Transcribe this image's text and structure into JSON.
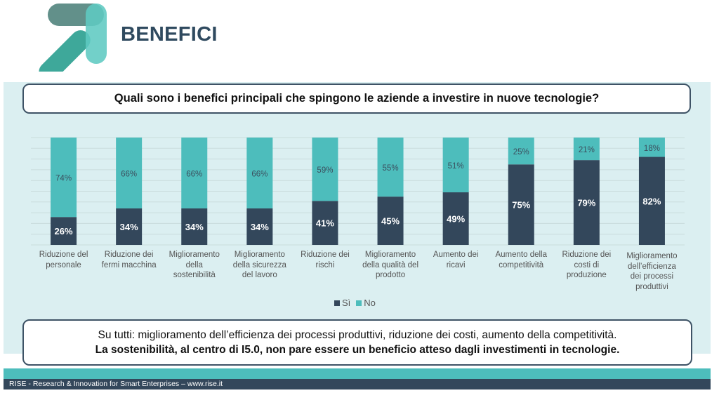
{
  "header": {
    "logo": "rise-arrow-logo",
    "title": "BENEFICI"
  },
  "question": "Quali sono i benefici principali che spingono le aziende a investire in nuove tecnologie?",
  "chart_data": {
    "type": "bar",
    "stacked": true,
    "percent_stacked": true,
    "title": "Quali sono i benefici principali che spingono le aziende a investire in nuove tecnologie?",
    "xlabel": "",
    "ylabel": "",
    "ylim": [
      0,
      100
    ],
    "grid": true,
    "legend_position": "bottom",
    "categories": [
      "Riduzione del personale",
      "Riduzione dei fermi macchina",
      "Miglioramento della sostenibilità",
      "Miglioramento della sicurezza del lavoro",
      "Riduzione dei rischi",
      "Miglioramento della qualità del prodotto",
      "Aumento dei ricavi",
      "Aumento della competitività",
      "Riduzione dei costi di produzione",
      "Miglioramento dell’efficienza dei processi produttivi"
    ],
    "category_lines": [
      [
        "Riduzione del",
        "personale"
      ],
      [
        "Riduzione dei",
        "fermi macchina"
      ],
      [
        "Miglioramento",
        "della",
        "sostenibilità"
      ],
      [
        "Miglioramento",
        "della sicurezza",
        "del lavoro"
      ],
      [
        "Riduzione dei",
        "rischi"
      ],
      [
        "Miglioramento",
        "della qualità del",
        "prodotto"
      ],
      [
        "Aumento dei",
        "ricavi"
      ],
      [
        "Aumento della",
        "competitività"
      ],
      [
        "Riduzione dei",
        "costi di",
        "produzione"
      ],
      [
        "Miglioramento",
        "dell’efficienza",
        "dei processi",
        "produttivi"
      ]
    ],
    "series": [
      {
        "name": "Sì",
        "color": "#33475b",
        "values": [
          26,
          34,
          34,
          34,
          41,
          45,
          49,
          75,
          79,
          82
        ],
        "labels": [
          "26%",
          "34%",
          "34%",
          "34%",
          "41%",
          "45%",
          "49%",
          "75%",
          "79%",
          "82%"
        ]
      },
      {
        "name": "No",
        "color": "#4dbdbc",
        "values": [
          74,
          66,
          66,
          66,
          59,
          55,
          51,
          25,
          21,
          18
        ],
        "labels": [
          "74%",
          "66%",
          "66%",
          "66%",
          "59%",
          "55%",
          "51%",
          "25%",
          "21%",
          "18%"
        ]
      }
    ]
  },
  "legend": {
    "items": [
      {
        "label": "Sì",
        "color": "#33475b"
      },
      {
        "label": "No",
        "color": "#4dbdbc"
      }
    ]
  },
  "note": {
    "line1": "Su tutti: miglioramento dell’efficienza dei processi produttivi, riduzione dei costi, aumento della competitività.",
    "line2": "La sostenibilità, al centro di I5.0, non pare essere un beneficio atteso dagli investimenti in tecnologie."
  },
  "footer": {
    "text": "RISE - Research & Innovation for Smart Enterprises – www.rise.it"
  },
  "colors": {
    "accent_teal": "#4dbdbc",
    "dark_navy": "#33475b",
    "panel_bg": "#dbeff1",
    "title_text": "#2f4a5f"
  }
}
